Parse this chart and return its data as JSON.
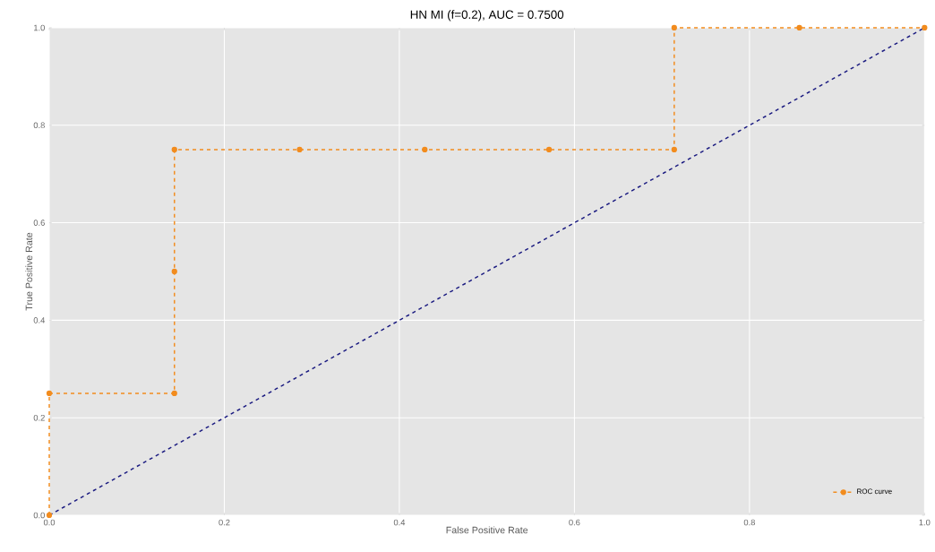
{
  "chart_data": {
    "type": "line",
    "title": "HN MI (f=0.2), AUC = 0.7500",
    "xlabel": "False Positive Rate",
    "ylabel": "True Positive Rate",
    "x": [
      0,
      0,
      0.143,
      0.143,
      0.143,
      0.286,
      0.429,
      0.571,
      0.714,
      0.714,
      0.857,
      1
    ],
    "series": [
      {
        "name": "ROC curve",
        "color": "#f28c1e",
        "marker": "circle",
        "line_style": "dashed",
        "values": [
          0,
          0.25,
          0.25,
          0.5,
          0.75,
          0.75,
          0.75,
          0.75,
          0.75,
          1,
          1,
          1
        ]
      },
      {
        "color": "#1a1a80",
        "marker": "none",
        "line_style": "dashed",
        "x": [
          0,
          1
        ],
        "values": [
          0,
          1
        ]
      }
    ],
    "xlim": [
      0,
      1
    ],
    "ylim": [
      0,
      1
    ],
    "xticks": [
      {
        "value": 0,
        "label": "0.0"
      },
      {
        "value": 0.2,
        "label": "0.2"
      },
      {
        "value": 0.4,
        "label": "0.4"
      },
      {
        "value": 0.6,
        "label": "0.6"
      },
      {
        "value": 0.8,
        "label": "0.8"
      },
      {
        "value": 1,
        "label": "1.0"
      }
    ],
    "yticks": [
      {
        "value": 0,
        "label": "0.0"
      },
      {
        "value": 0.2,
        "label": "0.2"
      },
      {
        "value": 0.4,
        "label": "0.4"
      },
      {
        "value": 0.6,
        "label": "0.6"
      },
      {
        "value": 0.8,
        "label": "0.8"
      },
      {
        "value": 1,
        "label": "1.0"
      }
    ],
    "grid": true,
    "legend": "bottom right"
  }
}
